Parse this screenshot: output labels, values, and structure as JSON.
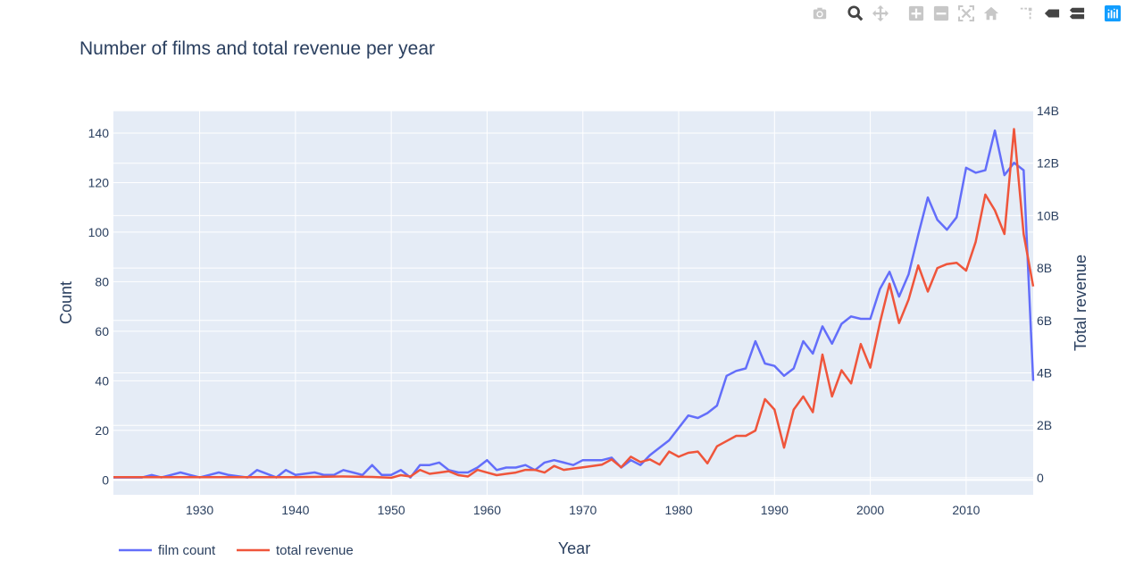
{
  "modebar": {
    "buttons": [
      {
        "name": "download-plot-icon"
      },
      {
        "name": "zoom-icon"
      },
      {
        "name": "pan-icon"
      },
      {
        "name": "zoom-in-icon"
      },
      {
        "name": "zoom-out-icon"
      },
      {
        "name": "autoscale-icon"
      },
      {
        "name": "reset-axes-icon"
      },
      {
        "name": "spike-lines-icon"
      },
      {
        "name": "hover-closest-icon"
      },
      {
        "name": "hover-compare-icon"
      },
      {
        "name": "plotly-logo-icon"
      }
    ]
  },
  "chart_data": {
    "type": "line",
    "title": "Number of films and total revenue per year",
    "xlabel": "Year",
    "ylabel": "Count",
    "y2label": "Total revenue",
    "xlim": [
      1921,
      2017
    ],
    "ylim": [
      -6,
      149
    ],
    "y2lim": [
      -650000000.0,
      14000000000.0
    ],
    "xticks": [
      1930,
      1940,
      1950,
      1960,
      1970,
      1980,
      1990,
      2000,
      2010
    ],
    "yticks": [
      0,
      20,
      40,
      60,
      80,
      100,
      120,
      140
    ],
    "y2ticks": [
      {
        "value": 0,
        "label": "0"
      },
      {
        "value": 2000000000.0,
        "label": "2B"
      },
      {
        "value": 4000000000.0,
        "label": "4B"
      },
      {
        "value": 6000000000.0,
        "label": "6B"
      },
      {
        "value": 8000000000.0,
        "label": "8B"
      },
      {
        "value": 10000000000.0,
        "label": "10B"
      },
      {
        "value": 12000000000.0,
        "label": "12B"
      },
      {
        "value": 14000000000.0,
        "label": "14B"
      }
    ],
    "grid": true,
    "legend_position": "bottom-left",
    "series": [
      {
        "name": "film count",
        "axis": "y",
        "color": "#636efa",
        "points": [
          [
            1921,
            1
          ],
          [
            1922,
            1
          ],
          [
            1923,
            1
          ],
          [
            1924,
            1
          ],
          [
            1925,
            2
          ],
          [
            1926,
            1
          ],
          [
            1927,
            2
          ],
          [
            1928,
            3
          ],
          [
            1929,
            2
          ],
          [
            1930,
            1
          ],
          [
            1931,
            2
          ],
          [
            1932,
            3
          ],
          [
            1933,
            2
          ],
          [
            1934,
            1.5
          ],
          [
            1935,
            1
          ],
          [
            1936,
            4
          ],
          [
            1937,
            2.5
          ],
          [
            1938,
            1
          ],
          [
            1939,
            4
          ],
          [
            1940,
            2
          ],
          [
            1941,
            2.5
          ],
          [
            1942,
            3
          ],
          [
            1943,
            2
          ],
          [
            1944,
            2
          ],
          [
            1945,
            4
          ],
          [
            1946,
            3
          ],
          [
            1947,
            2
          ],
          [
            1948,
            6
          ],
          [
            1949,
            2
          ],
          [
            1950,
            2
          ],
          [
            1951,
            4
          ],
          [
            1952,
            1
          ],
          [
            1953,
            6
          ],
          [
            1954,
            6
          ],
          [
            1955,
            7
          ],
          [
            1956,
            4
          ],
          [
            1957,
            3
          ],
          [
            1958,
            3
          ],
          [
            1959,
            5
          ],
          [
            1960,
            8
          ],
          [
            1961,
            4
          ],
          [
            1962,
            5
          ],
          [
            1963,
            5
          ],
          [
            1964,
            6
          ],
          [
            1965,
            4
          ],
          [
            1966,
            7
          ],
          [
            1967,
            8
          ],
          [
            1968,
            7
          ],
          [
            1969,
            6
          ],
          [
            1970,
            8
          ],
          [
            1971,
            8
          ],
          [
            1972,
            8
          ],
          [
            1973,
            9
          ],
          [
            1974,
            5
          ],
          [
            1975,
            8
          ],
          [
            1976,
            6
          ],
          [
            1977,
            10
          ],
          [
            1978,
            13
          ],
          [
            1979,
            16
          ],
          [
            1980,
            21
          ],
          [
            1981,
            26
          ],
          [
            1982,
            25
          ],
          [
            1983,
            27
          ],
          [
            1984,
            30
          ],
          [
            1985,
            42
          ],
          [
            1986,
            44
          ],
          [
            1987,
            45
          ],
          [
            1988,
            56
          ],
          [
            1989,
            47
          ],
          [
            1990,
            46
          ],
          [
            1991,
            42
          ],
          [
            1992,
            45
          ],
          [
            1993,
            56
          ],
          [
            1994,
            51
          ],
          [
            1995,
            62
          ],
          [
            1996,
            55
          ],
          [
            1997,
            63
          ],
          [
            1998,
            66
          ],
          [
            1999,
            65
          ],
          [
            2000,
            65
          ],
          [
            2001,
            77
          ],
          [
            2002,
            84
          ],
          [
            2003,
            74
          ],
          [
            2004,
            83
          ],
          [
            2005,
            99
          ],
          [
            2006,
            114
          ],
          [
            2007,
            105
          ],
          [
            2008,
            101
          ],
          [
            2009,
            106
          ],
          [
            2010,
            126
          ],
          [
            2011,
            124
          ],
          [
            2012,
            125
          ],
          [
            2013,
            141
          ],
          [
            2014,
            123
          ],
          [
            2015,
            128
          ],
          [
            2016,
            125
          ],
          [
            2017,
            40
          ]
        ]
      },
      {
        "name": "total revenue",
        "axis": "y2",
        "color": "#ef553b",
        "points": [
          [
            1921,
            20000000.0
          ],
          [
            1925,
            20000000.0
          ],
          [
            1930,
            20000000.0
          ],
          [
            1935,
            20000000.0
          ],
          [
            1940,
            20000000.0
          ],
          [
            1945,
            50000000.0
          ],
          [
            1948,
            30000000.0
          ],
          [
            1950,
            0.0
          ],
          [
            1951,
            100000000.0
          ],
          [
            1952,
            50000000.0
          ],
          [
            1953,
            300000000.0
          ],
          [
            1954,
            150000000.0
          ],
          [
            1955,
            200000000.0
          ],
          [
            1956,
            250000000.0
          ],
          [
            1957,
            100000000.0
          ],
          [
            1958,
            50000000.0
          ],
          [
            1959,
            300000000.0
          ],
          [
            1960,
            200000000.0
          ],
          [
            1961,
            100000000.0
          ],
          [
            1962,
            150000000.0
          ],
          [
            1963,
            200000000.0
          ],
          [
            1964,
            300000000.0
          ],
          [
            1965,
            300000000.0
          ],
          [
            1966,
            200000000.0
          ],
          [
            1967,
            450000000.0
          ],
          [
            1968,
            300000000.0
          ],
          [
            1969,
            350000000.0
          ],
          [
            1970,
            400000000.0
          ],
          [
            1971,
            450000000.0
          ],
          [
            1972,
            500000000.0
          ],
          [
            1973,
            700000000.0
          ],
          [
            1974,
            400000000.0
          ],
          [
            1975,
            800000000.0
          ],
          [
            1976,
            600000000.0
          ],
          [
            1977,
            700000000.0
          ],
          [
            1978,
            500000000.0
          ],
          [
            1979,
            1000000000.0
          ],
          [
            1980,
            800000000.0
          ],
          [
            1981,
            950000000.0
          ],
          [
            1982,
            1000000000.0
          ],
          [
            1983,
            550000000.0
          ],
          [
            1984,
            1200000000.0
          ],
          [
            1985,
            1400000000.0
          ],
          [
            1986,
            1600000000.0
          ],
          [
            1987,
            1600000000.0
          ],
          [
            1988,
            1800000000.0
          ],
          [
            1989,
            3000000000.0
          ],
          [
            1990,
            2600000000.0
          ],
          [
            1991,
            1150000000.0
          ],
          [
            1992,
            2600000000.0
          ],
          [
            1993,
            3100000000.0
          ],
          [
            1994,
            2500000000.0
          ],
          [
            1995,
            4700000000.0
          ],
          [
            1996,
            3100000000.0
          ],
          [
            1997,
            4100000000.0
          ],
          [
            1998,
            3600000000.0
          ],
          [
            1999,
            5100000000.0
          ],
          [
            2000,
            4200000000.0
          ],
          [
            2001,
            5900000000.0
          ],
          [
            2002,
            7400000000.0
          ],
          [
            2003,
            5900000000.0
          ],
          [
            2004,
            6800000000.0
          ],
          [
            2005,
            8100000000.0
          ],
          [
            2006,
            7100000000.0
          ],
          [
            2007,
            8000000000.0
          ],
          [
            2008,
            8150000000.0
          ],
          [
            2009,
            8200000000.0
          ],
          [
            2010,
            7900000000.0
          ],
          [
            2011,
            9000000000.0
          ],
          [
            2012,
            10800000000.0
          ],
          [
            2013,
            10200000000.0
          ],
          [
            2014,
            9300000000.0
          ],
          [
            2015,
            13300000000.0
          ],
          [
            2016,
            9300000000.0
          ],
          [
            2017,
            7300000000.0
          ]
        ]
      }
    ]
  }
}
